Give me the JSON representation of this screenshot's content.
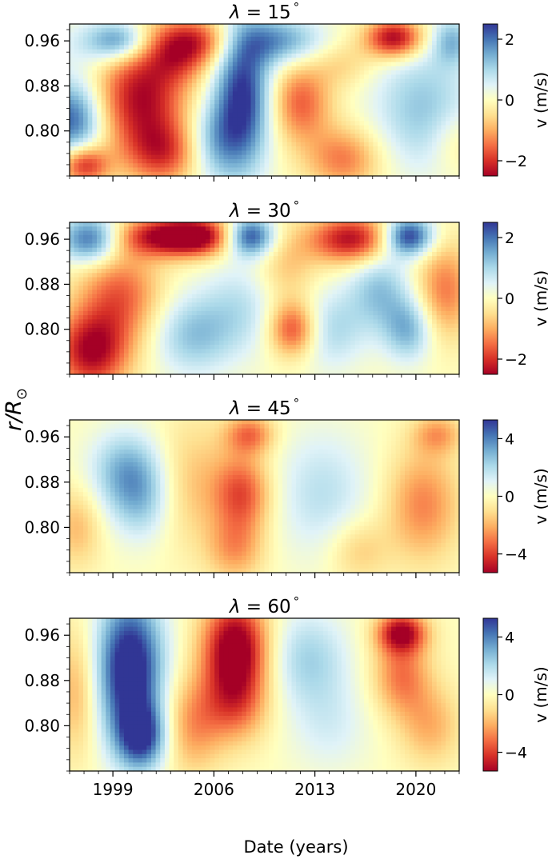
{
  "figure": {
    "ylabel": "r/R",
    "ylabel_sub": "⊙",
    "xlabel": "Date (years)"
  },
  "chart_data": [
    {
      "type": "heatmap",
      "title_prefix": "λ = ",
      "title_value": "15",
      "title_suffix": "°",
      "yticks": [
        "0.96",
        "0.88",
        "0.80"
      ],
      "ytick_values": [
        0.96,
        0.88,
        0.8
      ],
      "ylim": [
        0.72,
        0.99
      ],
      "xlim": [
        1996.0,
        2023.0
      ],
      "colorbar": {
        "label": "v (m/s)",
        "ticks": [
          "2",
          "0",
          "−2"
        ],
        "tick_values": [
          2,
          0,
          -2
        ],
        "range": [
          -2.5,
          2.5
        ]
      },
      "blobs": [
        {
          "t": 1997.3,
          "r": 0.955,
          "v": 0.5,
          "st": 2.0,
          "sr": 0.035
        },
        {
          "t": 1996.2,
          "r": 0.82,
          "v": 2.2,
          "st": 1.5,
          "sr": 0.05
        },
        {
          "t": 1997.0,
          "r": 0.74,
          "v": -2.2,
          "st": 1.2,
          "sr": 0.025
        },
        {
          "t": 1999.5,
          "r": 0.96,
          "v": 1.8,
          "st": 1.5,
          "sr": 0.025
        },
        {
          "t": 2001.0,
          "r": 0.86,
          "v": -2.4,
          "st": 2.2,
          "sr": 0.07
        },
        {
          "t": 2002.5,
          "r": 0.76,
          "v": -1.6,
          "st": 1.8,
          "sr": 0.04
        },
        {
          "t": 2004.5,
          "r": 0.96,
          "v": -2.0,
          "st": 2.0,
          "sr": 0.03
        },
        {
          "t": 2003.5,
          "r": 0.92,
          "v": -0.8,
          "st": 1.5,
          "sr": 0.03
        },
        {
          "t": 2008.0,
          "r": 0.86,
          "v": 2.6,
          "st": 1.4,
          "sr": 0.09
        },
        {
          "t": 2006.0,
          "r": 0.78,
          "v": 1.2,
          "st": 1.4,
          "sr": 0.05
        },
        {
          "t": 2010.5,
          "r": 0.96,
          "v": 1.6,
          "st": 2.2,
          "sr": 0.03
        },
        {
          "t": 2012.0,
          "r": 0.85,
          "v": -1.6,
          "st": 1.5,
          "sr": 0.05
        },
        {
          "t": 2015.0,
          "r": 0.75,
          "v": -1.4,
          "st": 1.8,
          "sr": 0.04
        },
        {
          "t": 2015.0,
          "r": 0.92,
          "v": -0.6,
          "st": 1.5,
          "sr": 0.03
        },
        {
          "t": 2018.5,
          "r": 0.965,
          "v": -2.6,
          "st": 1.4,
          "sr": 0.025
        },
        {
          "t": 2020.5,
          "r": 0.84,
          "v": 1.2,
          "st": 2.5,
          "sr": 0.08
        },
        {
          "t": 2022.5,
          "r": 0.96,
          "v": 1.2,
          "st": 1.0,
          "sr": 0.03
        },
        {
          "t": 2022.7,
          "r": 0.78,
          "v": -0.6,
          "st": 1.2,
          "sr": 0.04
        }
      ]
    },
    {
      "type": "heatmap",
      "title_prefix": "λ = ",
      "title_value": "30",
      "title_suffix": "°",
      "yticks": [
        "0.96",
        "0.88",
        "0.80"
      ],
      "ytick_values": [
        0.96,
        0.88,
        0.8
      ],
      "ylim": [
        0.72,
        0.99
      ],
      "xlim": [
        1996.0,
        2023.0
      ],
      "colorbar": {
        "label": "v (m/s)",
        "ticks": [
          "2",
          "0",
          "−2"
        ],
        "tick_values": [
          2,
          0,
          -2
        ],
        "range": [
          -2.5,
          2.5
        ]
      },
      "blobs": [
        {
          "t": 1997.5,
          "r": 0.96,
          "v": 2.3,
          "st": 1.5,
          "sr": 0.03
        },
        {
          "t": 1997.5,
          "r": 0.76,
          "v": -2.4,
          "st": 1.8,
          "sr": 0.05
        },
        {
          "t": 1999.5,
          "r": 0.86,
          "v": -1.6,
          "st": 2.0,
          "sr": 0.06
        },
        {
          "t": 2002.5,
          "r": 0.965,
          "v": -2.2,
          "st": 2.5,
          "sr": 0.025
        },
        {
          "t": 2005.0,
          "r": 0.965,
          "v": -1.8,
          "st": 1.8,
          "sr": 0.025
        },
        {
          "t": 2004.5,
          "r": 0.79,
          "v": 1.2,
          "st": 2.0,
          "sr": 0.05
        },
        {
          "t": 2008.5,
          "r": 0.965,
          "v": 2.5,
          "st": 1.2,
          "sr": 0.025
        },
        {
          "t": 2008.0,
          "r": 0.84,
          "v": 0.8,
          "st": 2.0,
          "sr": 0.06
        },
        {
          "t": 2011.0,
          "r": 0.91,
          "v": -0.8,
          "st": 1.5,
          "sr": 0.05
        },
        {
          "t": 2011.5,
          "r": 0.8,
          "v": -2.0,
          "st": 1.2,
          "sr": 0.035
        },
        {
          "t": 2015.5,
          "r": 0.96,
          "v": -2.4,
          "st": 2.0,
          "sr": 0.03
        },
        {
          "t": 2014.0,
          "r": 0.8,
          "v": 1.0,
          "st": 1.8,
          "sr": 0.05
        },
        {
          "t": 2017.5,
          "r": 0.87,
          "v": 1.2,
          "st": 1.5,
          "sr": 0.05
        },
        {
          "t": 2019.5,
          "r": 0.965,
          "v": 2.6,
          "st": 1.2,
          "sr": 0.025
        },
        {
          "t": 2019.5,
          "r": 0.8,
          "v": 1.4,
          "st": 1.2,
          "sr": 0.04
        },
        {
          "t": 2022.0,
          "r": 0.87,
          "v": -1.4,
          "st": 1.4,
          "sr": 0.06
        }
      ]
    },
    {
      "type": "heatmap",
      "title_prefix": "λ = ",
      "title_value": "45",
      "title_suffix": "°",
      "yticks": [
        "0.96",
        "0.88",
        "0.80"
      ],
      "ytick_values": [
        0.96,
        0.88,
        0.8
      ],
      "ylim": [
        0.72,
        0.99
      ],
      "xlim": [
        1996.0,
        2023.0
      ],
      "colorbar": {
        "label": "v (m/s)",
        "ticks": [
          "4",
          "0",
          "−4"
        ],
        "tick_values": [
          4,
          0,
          -4
        ],
        "range": [
          -5.3,
          5.3
        ]
      },
      "blobs": [
        {
          "t": 1996.5,
          "r": 0.8,
          "v": -1.8,
          "st": 1.2,
          "sr": 0.05
        },
        {
          "t": 2000.0,
          "r": 0.9,
          "v": 3.0,
          "st": 1.8,
          "sr": 0.05
        },
        {
          "t": 2001.0,
          "r": 0.84,
          "v": 2.0,
          "st": 1.5,
          "sr": 0.05
        },
        {
          "t": 2004.5,
          "r": 0.88,
          "v": -1.6,
          "st": 2.0,
          "sr": 0.08
        },
        {
          "t": 2008.0,
          "r": 0.86,
          "v": -3.6,
          "st": 1.4,
          "sr": 0.05
        },
        {
          "t": 2008.5,
          "r": 0.965,
          "v": -3.0,
          "st": 1.2,
          "sr": 0.025
        },
        {
          "t": 2007.5,
          "r": 0.76,
          "v": -2.2,
          "st": 1.4,
          "sr": 0.04
        },
        {
          "t": 2013.5,
          "r": 0.86,
          "v": 1.8,
          "st": 2.4,
          "sr": 0.08
        },
        {
          "t": 2016.0,
          "r": 0.76,
          "v": -1.6,
          "st": 1.5,
          "sr": 0.04
        },
        {
          "t": 2020.5,
          "r": 0.84,
          "v": -2.8,
          "st": 1.8,
          "sr": 0.07
        },
        {
          "t": 2021.5,
          "r": 0.965,
          "v": -2.2,
          "st": 1.2,
          "sr": 0.025
        }
      ]
    },
    {
      "type": "heatmap",
      "title_prefix": "λ = ",
      "title_value": "60",
      "title_suffix": "°",
      "yticks": [
        "0.96",
        "0.88",
        "0.80"
      ],
      "ytick_values": [
        0.96,
        0.88,
        0.8
      ],
      "ylim": [
        0.72,
        0.99
      ],
      "xlim": [
        1996.0,
        2023.0
      ],
      "colorbar": {
        "label": "v (m/s)",
        "ticks": [
          "4",
          "0",
          "−4"
        ],
        "tick_values": [
          4,
          0,
          -4
        ],
        "range": [
          -5.3,
          5.3
        ]
      },
      "blobs": [
        {
          "t": 1996.5,
          "r": 0.86,
          "v": -2.0,
          "st": 1.0,
          "sr": 0.08
        },
        {
          "t": 2000.2,
          "r": 0.9,
          "v": 6.5,
          "st": 1.6,
          "sr": 0.09
        },
        {
          "t": 2001.0,
          "r": 0.78,
          "v": 4.5,
          "st": 1.2,
          "sr": 0.04
        },
        {
          "t": 2004.5,
          "r": 0.8,
          "v": -2.4,
          "st": 1.5,
          "sr": 0.06
        },
        {
          "t": 2007.5,
          "r": 0.94,
          "v": -6.0,
          "st": 1.6,
          "sr": 0.06
        },
        {
          "t": 2007.5,
          "r": 0.84,
          "v": -3.0,
          "st": 1.6,
          "sr": 0.05
        },
        {
          "t": 2012.5,
          "r": 0.92,
          "v": 2.2,
          "st": 2.0,
          "sr": 0.06
        },
        {
          "t": 2014.0,
          "r": 0.8,
          "v": 1.2,
          "st": 2.0,
          "sr": 0.06
        },
        {
          "t": 2019.0,
          "r": 0.965,
          "v": -5.0,
          "st": 1.2,
          "sr": 0.025
        },
        {
          "t": 2019.0,
          "r": 0.89,
          "v": -3.0,
          "st": 1.4,
          "sr": 0.05
        },
        {
          "t": 2021.0,
          "r": 0.8,
          "v": -2.0,
          "st": 1.5,
          "sr": 0.05
        }
      ]
    }
  ],
  "x_axis": {
    "ticks": [
      "1999",
      "2006",
      "2013",
      "2020"
    ],
    "tick_values": [
      1999,
      2006,
      2013,
      2020
    ],
    "minor_step": 1
  }
}
